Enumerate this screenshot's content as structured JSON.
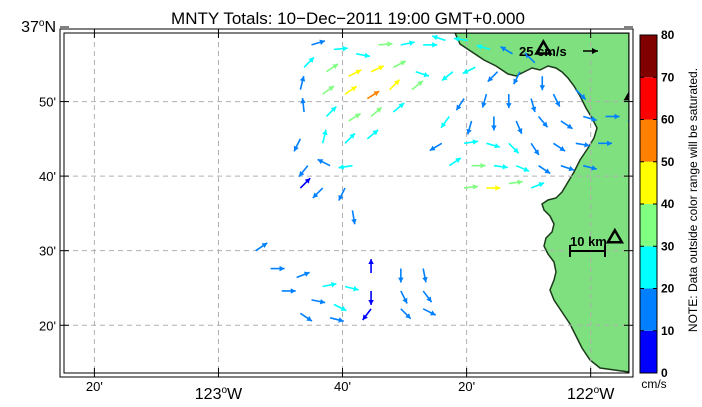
{
  "title": "MNTY Totals: 10−Dec−2011 19:00 GMT+0.000",
  "y_ticks": [
    {
      "lat": 37.0,
      "label": "37",
      "deg": "o",
      "hemi": "N",
      "big": true
    },
    {
      "lat": 36.8333,
      "label": "50'",
      "big": false
    },
    {
      "lat": 36.6667,
      "label": "40'",
      "big": false
    },
    {
      "lat": 36.5,
      "label": "30'",
      "big": false
    },
    {
      "lat": 36.3333,
      "label": "20'",
      "big": false
    }
  ],
  "x_ticks": [
    {
      "lon": -123.3333,
      "label": "20'",
      "big": false
    },
    {
      "lon": -123.0,
      "label": "123",
      "deg": "o",
      "hemi": "W",
      "big": true
    },
    {
      "lon": -122.6667,
      "label": "40'",
      "big": false
    },
    {
      "lon": -122.3333,
      "label": "20'",
      "big": false
    },
    {
      "lon": -122.0,
      "label": "122",
      "deg": "o",
      "hemi": "W",
      "big": true
    }
  ],
  "reference_arrow": {
    "label": "25 cm/s",
    "speed_cm_s": 25
  },
  "scale_bar": {
    "label": "10 km",
    "km": 10
  },
  "colorbar": {
    "ticks": [
      "0",
      "10",
      "20",
      "30",
      "40",
      "50",
      "60",
      "70",
      "80"
    ],
    "colors": [
      "#0000ff",
      "#0080ff",
      "#00ffff",
      "#80ff80",
      "#ffff00",
      "#ff8000",
      "#ff0000",
      "#800000"
    ],
    "unit": "cm/s",
    "note": "NOTE: Data outside color range will be saturated."
  },
  "colors": {
    "land": "#7fe07f",
    "coast": "#1a3a1a",
    "grid": "#b0b0b0"
  },
  "stations": [
    {
      "name": "station-1",
      "lon": -122.127,
      "lat": 36.952
    },
    {
      "name": "station-2",
      "lon": -121.887,
      "lat": 36.85
    },
    {
      "name": "station-3",
      "lon": -121.935,
      "lat": 36.53
    }
  ],
  "vectors": [
    {
      "lon": -122.75,
      "lat": 36.96,
      "u": 10,
      "v": 3,
      "s": 18
    },
    {
      "lon": -122.69,
      "lat": 36.95,
      "u": 12,
      "v": 1,
      "s": 24
    },
    {
      "lon": -122.63,
      "lat": 36.94,
      "u": 11,
      "v": -2,
      "s": 28
    },
    {
      "lon": -122.57,
      "lat": 36.96,
      "u": 12,
      "v": 1,
      "s": 32
    },
    {
      "lon": -122.51,
      "lat": 36.96,
      "u": 10,
      "v": 2,
      "s": 26
    },
    {
      "lon": -122.45,
      "lat": 36.96,
      "u": 9,
      "v": 0,
      "s": 22
    },
    {
      "lon": -122.39,
      "lat": 36.97,
      "u": -6,
      "v": 2,
      "s": 20
    },
    {
      "lon": -122.33,
      "lat": 36.97,
      "u": -7,
      "v": 1,
      "s": 24
    },
    {
      "lon": -122.27,
      "lat": 36.95,
      "u": -7,
      "v": 2,
      "s": 22
    },
    {
      "lon": -122.21,
      "lat": 36.94,
      "u": -5,
      "v": 3,
      "s": 18
    },
    {
      "lon": -122.15,
      "lat": 36.92,
      "u": -4,
      "v": 4,
      "s": 16
    },
    {
      "lon": -122.77,
      "lat": 36.91,
      "u": 5,
      "v": 5,
      "s": 20
    },
    {
      "lon": -122.71,
      "lat": 36.9,
      "u": 9,
      "v": 6,
      "s": 36
    },
    {
      "lon": -122.65,
      "lat": 36.89,
      "u": 10,
      "v": 5,
      "s": 40
    },
    {
      "lon": -122.59,
      "lat": 36.9,
      "u": 11,
      "v": 5,
      "s": 44
    },
    {
      "lon": -122.53,
      "lat": 36.91,
      "u": 8,
      "v": 4,
      "s": 38
    },
    {
      "lon": -122.47,
      "lat": 36.9,
      "u": 6,
      "v": -2,
      "s": 28
    },
    {
      "lon": -122.37,
      "lat": 36.9,
      "u": -5,
      "v": -4,
      "s": 22
    },
    {
      "lon": -122.31,
      "lat": 36.91,
      "u": -6,
      "v": -3,
      "s": 20
    },
    {
      "lon": -122.25,
      "lat": 36.9,
      "u": -5,
      "v": -5,
      "s": 16
    },
    {
      "lon": -122.19,
      "lat": 36.9,
      "u": -3,
      "v": -6,
      "s": 14
    },
    {
      "lon": -122.13,
      "lat": 36.89,
      "u": 0,
      "v": -7,
      "s": 12
    },
    {
      "lon": -122.78,
      "lat": 36.86,
      "u": 2,
      "v": 8,
      "s": 14
    },
    {
      "lon": -122.72,
      "lat": 36.85,
      "u": 7,
      "v": 5,
      "s": 30
    },
    {
      "lon": -122.66,
      "lat": 36.85,
      "u": 9,
      "v": 6,
      "s": 42
    },
    {
      "lon": -122.6,
      "lat": 36.84,
      "u": 8,
      "v": 5,
      "s": 52
    },
    {
      "lon": -122.54,
      "lat": 36.86,
      "u": 7,
      "v": 7,
      "s": 40
    },
    {
      "lon": -122.48,
      "lat": 36.86,
      "u": 5,
      "v": 4,
      "s": 30
    },
    {
      "lon": -122.34,
      "lat": 36.84,
      "u": -4,
      "v": -6,
      "s": 18
    },
    {
      "lon": -122.28,
      "lat": 36.85,
      "u": -2,
      "v": -7,
      "s": 14
    },
    {
      "lon": -122.22,
      "lat": 36.85,
      "u": 0,
      "v": -8,
      "s": 14
    },
    {
      "lon": -122.16,
      "lat": 36.84,
      "u": 2,
      "v": -7,
      "s": 12
    },
    {
      "lon": -122.1,
      "lat": 36.85,
      "u": 3,
      "v": -6,
      "s": 14
    },
    {
      "lon": -122.04,
      "lat": 36.86,
      "u": 5,
      "v": -5,
      "s": 16
    },
    {
      "lon": -122.77,
      "lat": 36.81,
      "u": -1,
      "v": 9,
      "s": 14
    },
    {
      "lon": -122.71,
      "lat": 36.8,
      "u": 6,
      "v": 6,
      "s": 28
    },
    {
      "lon": -122.65,
      "lat": 36.79,
      "u": 8,
      "v": 5,
      "s": 36
    },
    {
      "lon": -122.59,
      "lat": 36.8,
      "u": 7,
      "v": 6,
      "s": 32
    },
    {
      "lon": -122.53,
      "lat": 36.81,
      "u": 6,
      "v": 5,
      "s": 26
    },
    {
      "lon": -122.38,
      "lat": 36.8,
      "u": -5,
      "v": -7,
      "s": 20
    },
    {
      "lon": -122.32,
      "lat": 36.79,
      "u": -2,
      "v": -7,
      "s": 16
    },
    {
      "lon": -122.26,
      "lat": 36.8,
      "u": 0,
      "v": -8,
      "s": 14
    },
    {
      "lon": -122.2,
      "lat": 36.79,
      "u": 3,
      "v": -7,
      "s": 14
    },
    {
      "lon": -122.14,
      "lat": 36.8,
      "u": 5,
      "v": -6,
      "s": 16
    },
    {
      "lon": -122.08,
      "lat": 36.79,
      "u": 6,
      "v": -4,
      "s": 18
    },
    {
      "lon": -122.02,
      "lat": 36.8,
      "u": 7,
      "v": -2,
      "s": 16
    },
    {
      "lon": -121.96,
      "lat": 36.8,
      "u": 6,
      "v": 0,
      "s": 14
    },
    {
      "lon": -121.9,
      "lat": 36.79,
      "u": 5,
      "v": 1,
      "s": 12
    },
    {
      "lon": -122.78,
      "lat": 36.75,
      "u": -3,
      "v": -6,
      "s": 10
    },
    {
      "lon": -122.72,
      "lat": 36.74,
      "u": 2,
      "v": 8,
      "s": 20
    },
    {
      "lon": -122.66,
      "lat": 36.74,
      "u": 6,
      "v": 6,
      "s": 26
    },
    {
      "lon": -122.6,
      "lat": 36.75,
      "u": 6,
      "v": 5,
      "s": 24
    },
    {
      "lon": -122.4,
      "lat": 36.74,
      "u": -5,
      "v": -3,
      "s": 18
    },
    {
      "lon": -122.34,
      "lat": 36.74,
      "u": 7,
      "v": 1,
      "s": 24
    },
    {
      "lon": -122.28,
      "lat": 36.74,
      "u": 7,
      "v": -2,
      "s": 26
    },
    {
      "lon": -122.22,
      "lat": 36.74,
      "u": 5,
      "v": -5,
      "s": 22
    },
    {
      "lon": -122.16,
      "lat": 36.74,
      "u": 4,
      "v": -6,
      "s": 18
    },
    {
      "lon": -122.1,
      "lat": 36.74,
      "u": 6,
      "v": -4,
      "s": 16
    },
    {
      "lon": -122.04,
      "lat": 36.74,
      "u": 6,
      "v": -1,
      "s": 14
    },
    {
      "lon": -121.98,
      "lat": 36.74,
      "u": 5,
      "v": 0,
      "s": 12
    },
    {
      "lon": -122.76,
      "lat": 36.69,
      "u": -4,
      "v": -5,
      "s": 10
    },
    {
      "lon": -122.7,
      "lat": 36.69,
      "u": -6,
      "v": 3,
      "s": 18
    },
    {
      "lon": -122.64,
      "lat": 36.69,
      "u": -7,
      "v": -1,
      "s": 20
    },
    {
      "lon": -122.38,
      "lat": 36.69,
      "u": 6,
      "v": 4,
      "s": 22
    },
    {
      "lon": -122.32,
      "lat": 36.69,
      "u": 8,
      "v": 0,
      "s": 30
    },
    {
      "lon": -122.26,
      "lat": 36.69,
      "u": 8,
      "v": -1,
      "s": 28
    },
    {
      "lon": -122.2,
      "lat": 36.69,
      "u": 7,
      "v": -3,
      "s": 22
    },
    {
      "lon": -122.14,
      "lat": 36.69,
      "u": 6,
      "v": -4,
      "s": 18
    },
    {
      "lon": -122.08,
      "lat": 36.69,
      "u": 6,
      "v": -2,
      "s": 16
    },
    {
      "lon": -122.02,
      "lat": 36.69,
      "u": 4,
      "v": -1,
      "s": 12
    },
    {
      "lon": -122.78,
      "lat": 36.64,
      "u": 3,
      "v": 3,
      "s": 8
    },
    {
      "lon": -122.72,
      "lat": 36.64,
      "u": -4,
      "v": -4,
      "s": 12
    },
    {
      "lon": -122.66,
      "lat": 36.64,
      "u": -3,
      "v": -6,
      "s": 14
    },
    {
      "lon": -122.34,
      "lat": 36.64,
      "u": 8,
      "v": 1,
      "s": 32
    },
    {
      "lon": -122.28,
      "lat": 36.64,
      "u": 8,
      "v": 0,
      "s": 40
    },
    {
      "lon": -122.22,
      "lat": 36.65,
      "u": 7,
      "v": 1,
      "s": 34
    },
    {
      "lon": -122.16,
      "lat": 36.64,
      "u": 5,
      "v": 2,
      "s": 24
    },
    {
      "lon": -122.64,
      "lat": 36.59,
      "u": 1,
      "v": -6,
      "s": 14
    },
    {
      "lon": -122.59,
      "lat": 36.45,
      "u": 0,
      "v": 5,
      "s": 6
    },
    {
      "lon": -122.51,
      "lat": 36.46,
      "u": 0,
      "v": -5,
      "s": 10
    },
    {
      "lon": -122.45,
      "lat": 36.46,
      "u": 1,
      "v": -5,
      "s": 12
    },
    {
      "lon": -122.59,
      "lat": 36.41,
      "u": 0,
      "v": -5,
      "s": 8
    },
    {
      "lon": -122.51,
      "lat": 36.41,
      "u": 2,
      "v": -4,
      "s": 12
    },
    {
      "lon": -122.45,
      "lat": 36.41,
      "u": 3,
      "v": -4,
      "s": 14
    },
    {
      "lon": -122.59,
      "lat": 36.37,
      "u": -3,
      "v": -4,
      "s": 6
    },
    {
      "lon": -122.51,
      "lat": 36.37,
      "u": 3,
      "v": -3,
      "s": 12
    },
    {
      "lon": -122.45,
      "lat": 36.37,
      "u": 4,
      "v": -2,
      "s": 14
    },
    {
      "lon": -122.9,
      "lat": 36.5,
      "u": 3,
      "v": 2,
      "s": 10
    },
    {
      "lon": -122.86,
      "lat": 36.46,
      "u": 4,
      "v": 0,
      "s": 12
    },
    {
      "lon": -122.79,
      "lat": 36.44,
      "u": 5,
      "v": 2,
      "s": 16
    },
    {
      "lon": -122.72,
      "lat": 36.42,
      "u": 5,
      "v": 1,
      "s": 20
    },
    {
      "lon": -122.66,
      "lat": 36.42,
      "u": 4,
      "v": -1,
      "s": 22
    },
    {
      "lon": -122.83,
      "lat": 36.41,
      "u": 4,
      "v": 0,
      "s": 14
    },
    {
      "lon": -122.75,
      "lat": 36.39,
      "u": 5,
      "v": -1,
      "s": 18
    },
    {
      "lon": -122.69,
      "lat": 36.38,
      "u": 4,
      "v": -2,
      "s": 20
    },
    {
      "lon": -122.78,
      "lat": 36.36,
      "u": 3,
      "v": -2,
      "s": 18
    },
    {
      "lon": -122.7,
      "lat": 36.35,
      "u": 4,
      "v": -1,
      "s": 18
    }
  ]
}
